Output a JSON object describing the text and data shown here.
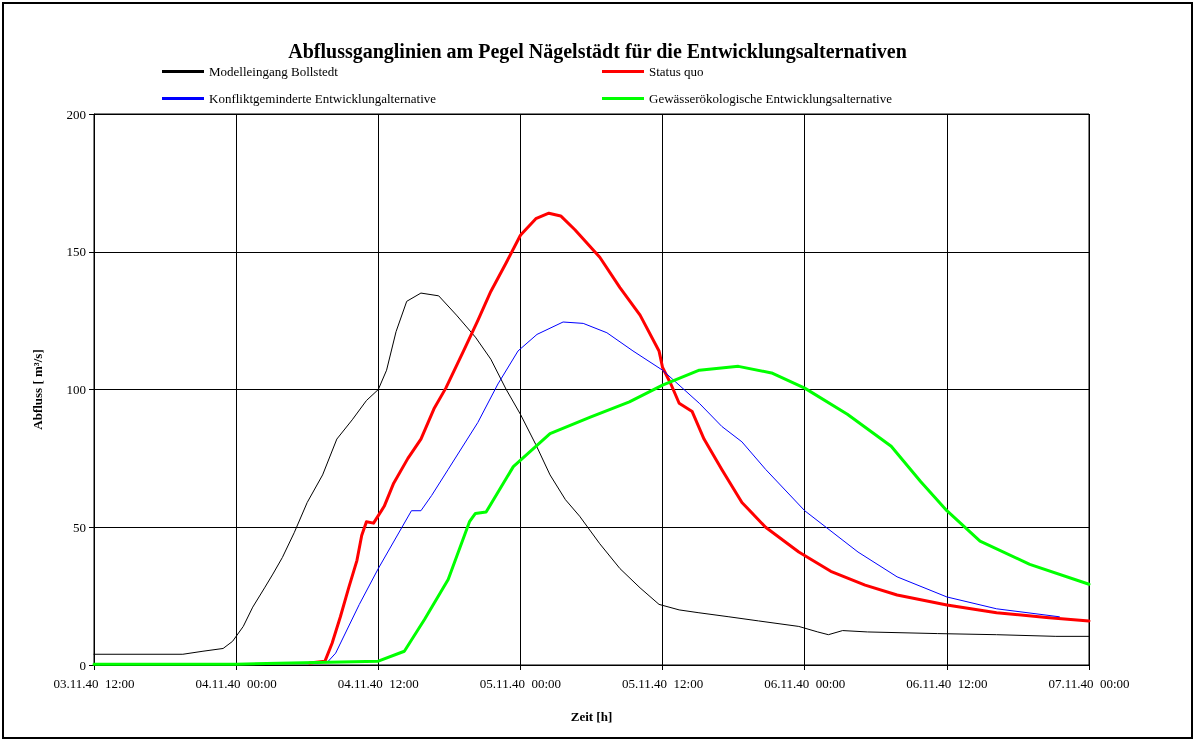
{
  "chart_data": {
    "type": "line",
    "title": "Abflussganglinien am Pegel Nägelstädt für die Entwicklungsalternativen",
    "xlabel": "Zeit [h]",
    "ylabel": "Abfluss [ m³/s]",
    "xlim": [
      "1940-11-03T12:00",
      "1940-11-07T00:00"
    ],
    "xticks": [
      {
        "value": "1940-11-03T12:00",
        "label": "03.11.40  12:00"
      },
      {
        "value": "1940-11-04T00:00",
        "label": "04.11.40  00:00"
      },
      {
        "value": "1940-11-04T12:00",
        "label": "04.11.40  12:00"
      },
      {
        "value": "1940-11-05T00:00",
        "label": "05.11.40  00:00"
      },
      {
        "value": "1940-11-05T12:00",
        "label": "05.11.40  12:00"
      },
      {
        "value": "1940-11-06T00:00",
        "label": "06.11.40  00:00"
      },
      {
        "value": "1940-11-06T12:00",
        "label": "06.11.40  12:00"
      },
      {
        "value": "1940-11-07T00:00",
        "label": "07.11.40  00:00"
      }
    ],
    "ylim": [
      0,
      200
    ],
    "yticks": [
      0,
      50,
      100,
      150,
      200
    ],
    "grid": true,
    "legend": "top",
    "marker": "none",
    "line_style": "solid",
    "series": [
      {
        "name": "Modelleingang Bollstedt",
        "color": "#000000",
        "x": [
          "1940-11-03T12:00",
          "1940-11-03T19:30",
          "1940-11-03T21:12",
          "1940-11-03T22:54",
          "1940-11-03T23:42",
          "1940-11-04T00:36",
          "1940-11-04T01:24",
          "1940-11-04T02:24",
          "1940-11-04T03:06",
          "1940-11-04T03:54",
          "1940-11-04T04:54",
          "1940-11-04T06:00",
          "1940-11-04T07:18",
          "1940-11-04T08:30",
          "1940-11-04T09:48",
          "1940-11-04T11:00",
          "1940-11-04T12:00",
          "1940-11-04T12:42",
          "1940-11-04T13:30",
          "1940-11-04T14:24",
          "1940-11-04T15:36",
          "1940-11-04T17:06",
          "1940-11-04T18:36",
          "1940-11-04T20:12",
          "1940-11-04T21:30",
          "1940-11-04T22:48",
          "1940-11-05T00:00",
          "1940-11-05T01:18",
          "1940-11-05T02:30",
          "1940-11-05T03:48",
          "1940-11-05T05:00",
          "1940-11-05T06:42",
          "1940-11-05T08:24",
          "1940-11-05T10:06",
          "1940-11-05T11:42",
          "1940-11-05T13:24",
          "1940-11-05T15:00",
          "1940-11-05T17:36",
          "1940-11-05T20:06",
          "1940-11-05T23:30",
          "1940-11-06T01:06",
          "1940-11-06T02:00",
          "1940-11-06T03:12",
          "1940-11-06T05:18",
          "1940-11-06T11:12",
          "1940-11-06T16:12",
          "1940-11-06T21:12",
          "1940-11-07T00:00"
        ],
        "values": [
          3.9,
          3.9,
          5,
          6,
          8.6,
          14,
          21,
          28,
          33,
          39,
          48,
          59,
          69,
          82,
          89,
          96,
          100,
          107,
          121,
          132,
          135,
          134,
          127,
          119,
          111,
          100,
          91,
          80,
          69,
          60,
          54,
          44,
          35,
          28,
          22,
          20,
          19,
          17.5,
          16,
          14,
          12,
          11,
          12.5,
          12,
          11.4,
          11,
          10.4,
          10.4
        ]
      },
      {
        "name": "Status quo",
        "color": "#ff0000",
        "x": [
          "1940-11-04T06:12",
          "1940-11-04T07:30",
          "1940-11-04T08:06",
          "1940-11-04T08:48",
          "1940-11-04T09:30",
          "1940-11-04T10:12",
          "1940-11-04T10:36",
          "1940-11-04T11:00",
          "1940-11-04T11:36",
          "1940-11-04T12:30",
          "1940-11-04T13:18",
          "1940-11-04T14:30",
          "1940-11-04T15:36",
          "1940-11-04T16:42",
          "1940-11-04T17:42",
          "1940-11-04T19:12",
          "1940-11-04T20:24",
          "1940-11-04T21:30",
          "1940-11-04T22:48",
          "1940-11-05T00:00",
          "1940-11-05T01:18",
          "1940-11-05T02:24",
          "1940-11-05T03:24",
          "1940-11-05T04:36",
          "1940-11-05T06:42",
          "1940-11-05T08:24",
          "1940-11-05T10:06",
          "1940-11-05T11:42",
          "1940-11-05T12:00",
          "1940-11-05T12:42",
          "1940-11-05T13:24",
          "1940-11-05T14:30",
          "1940-11-05T15:30",
          "1940-11-05T17:00",
          "1940-11-05T18:42",
          "1940-11-05T20:42",
          "1940-11-05T23:30",
          "1940-11-06T02:12",
          "1940-11-06T05:06",
          "1940-11-06T07:48",
          "1940-11-06T12:00",
          "1940-11-06T16:12",
          "1940-11-06T20:24",
          "1940-11-07T00:00"
        ],
        "values": [
          0.7,
          1.4,
          7.9,
          17.5,
          28,
          38,
          47,
          52,
          51.5,
          57.6,
          66,
          75,
          82,
          93,
          100.5,
          114,
          125,
          135.6,
          146,
          156,
          162,
          164,
          163,
          158,
          148,
          137,
          127,
          114,
          108,
          102,
          95,
          92,
          82,
          71,
          59,
          50,
          41,
          34,
          29,
          25.4,
          21.8,
          19,
          17.2,
          16
        ]
      },
      {
        "name": "Konfliktgeminderte Entwicklungalternative",
        "color": "#0000ff",
        "x": [
          "1940-11-04T07:42",
          "1940-11-04T08:24",
          "1940-11-04T10:24",
          "1940-11-04T12:00",
          "1940-11-04T14:00",
          "1940-11-04T14:48",
          "1940-11-04T15:36",
          "1940-11-04T16:30",
          "1940-11-04T17:54",
          "1940-11-04T20:24",
          "1940-11-04T22:06",
          "1940-11-04T23:48",
          "1940-11-05T01:24",
          "1940-11-05T03:36",
          "1940-11-05T05:18",
          "1940-11-05T07:18",
          "1940-11-05T09:30",
          "1940-11-05T12:00",
          "1940-11-05T15:06",
          "1940-11-05T17:00",
          "1940-11-05T18:42",
          "1940-11-05T20:42",
          "1940-11-06T00:00",
          "1940-11-06T04:30",
          "1940-11-06T07:48",
          "1940-11-06T12:00",
          "1940-11-06T16:12",
          "1940-11-06T21:30"
        ],
        "values": [
          1,
          4.3,
          22,
          35,
          50,
          56,
          56,
          61.5,
          71,
          88,
          102,
          114,
          120,
          124.5,
          124,
          120.6,
          114,
          107,
          95,
          86.6,
          81,
          71,
          56,
          41,
          32,
          24.7,
          20.4,
          17.5
        ]
      },
      {
        "name": "Gewässerökologische Entwicklungsalternative",
        "color": "#00ff00",
        "x": [
          "1940-11-03T12:00",
          "1940-11-04T00:00",
          "1940-11-04T12:00",
          "1940-11-04T14:12",
          "1940-11-04T15:54",
          "1940-11-04T17:54",
          "1940-11-04T19:42",
          "1940-11-04T20:12",
          "1940-11-04T21:06",
          "1940-11-04T23:24",
          "1940-11-05T02:30",
          "1940-11-05T05:54",
          "1940-11-05T09:12",
          "1940-11-05T12:00",
          "1940-11-05T15:06",
          "1940-11-05T18:24",
          "1940-11-05T21:12",
          "1940-11-06T00:00",
          "1940-11-06T03:36",
          "1940-11-06T07:18",
          "1940-11-06T09:48",
          "1940-11-06T12:00",
          "1940-11-06T14:48",
          "1940-11-06T19:00",
          "1940-11-07T00:00"
        ],
        "values": [
          0.3,
          0.3,
          1.4,
          5,
          16.5,
          31,
          52,
          55,
          55.5,
          72,
          84,
          90,
          95.5,
          101.6,
          107,
          108.4,
          106,
          100.5,
          91,
          79.4,
          66.5,
          56,
          45,
          36.5,
          29.3
        ]
      }
    ]
  }
}
